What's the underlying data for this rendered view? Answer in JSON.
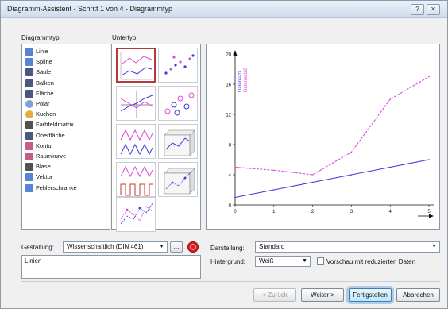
{
  "window": {
    "title": "Diagramm-Assistent - Schritt 1 von 4 - Diagrammtyp",
    "help_icon": "?",
    "close_icon": "✕"
  },
  "labels": {
    "diagrammtyp": "Diagrammtyp:",
    "untertyp": "Untertyp:"
  },
  "chart_types": [
    {
      "label": "Linie",
      "icon": "line-chart-icon",
      "color": "#3b6fd1"
    },
    {
      "label": "Spline",
      "icon": "spline-chart-icon",
      "color": "#3b6fd1"
    },
    {
      "label": "Säule",
      "icon": "column-chart-icon",
      "color": "#2a3b6a"
    },
    {
      "label": "Balken",
      "icon": "bar-chart-icon",
      "color": "#2a3b6a"
    },
    {
      "label": "Fläche",
      "icon": "area-chart-icon",
      "color": "#2a3b6a"
    },
    {
      "label": "Polar",
      "icon": "polar-chart-icon",
      "color": "#6a8fd0"
    },
    {
      "label": "Kuchen",
      "icon": "pie-chart-icon",
      "color": "#e0a020"
    },
    {
      "label": "Farbfeldmatrix",
      "icon": "matrix-chart-icon",
      "color": "#333333"
    },
    {
      "label": "Oberfläche",
      "icon": "surface-chart-icon",
      "color": "#2a3b6a"
    },
    {
      "label": "Kontur",
      "icon": "contour-chart-icon",
      "color": "#c04070"
    },
    {
      "label": "Raumkurve",
      "icon": "space-curve-icon",
      "color": "#c04070"
    },
    {
      "label": "Blase",
      "icon": "bubble-chart-icon",
      "color": "#333333"
    },
    {
      "label": "Vektor",
      "icon": "vector-chart-icon",
      "color": "#3b6fd1"
    },
    {
      "label": "Fehlerschranke",
      "icon": "error-bar-icon",
      "color": "#3b6fd1"
    }
  ],
  "preview": {
    "series_labels": [
      "Datensatz",
      "Datensatz2"
    ],
    "series_colors": [
      "#3b3bd9",
      "#d94ad9"
    ],
    "y_ticks": [
      "0",
      "4",
      "8",
      "12",
      "16",
      "20"
    ],
    "x_ticks": [
      "0",
      "1",
      "2",
      "3",
      "4",
      "5"
    ]
  },
  "chart_data": {
    "type": "line",
    "x": [
      0,
      1,
      2,
      3,
      4,
      5
    ],
    "xlim": [
      0,
      5
    ],
    "ylim": [
      0,
      20
    ],
    "series": [
      {
        "name": "Datensatz",
        "values": [
          1,
          2,
          3,
          4,
          5,
          6
        ]
      },
      {
        "name": "Datensatz2",
        "values": [
          5,
          4.6,
          4,
          7,
          14,
          17
        ]
      }
    ]
  },
  "gestaltung": {
    "label": "Gestaltung:",
    "value": "Wissenschaftlich (DIN 461)",
    "more_label": "..."
  },
  "description": "Linien",
  "darstellung": {
    "label": "Darstellung:",
    "value": "Standard"
  },
  "hintergrund": {
    "label": "Hintergrund:",
    "value": "Weiß"
  },
  "vorschau": {
    "label": "Vorschau mit reduzierten Daten"
  },
  "buttons": {
    "back": "< Zurück",
    "next": "Weiter >",
    "finish": "Fertigstellen",
    "cancel": "Abbrechen"
  }
}
